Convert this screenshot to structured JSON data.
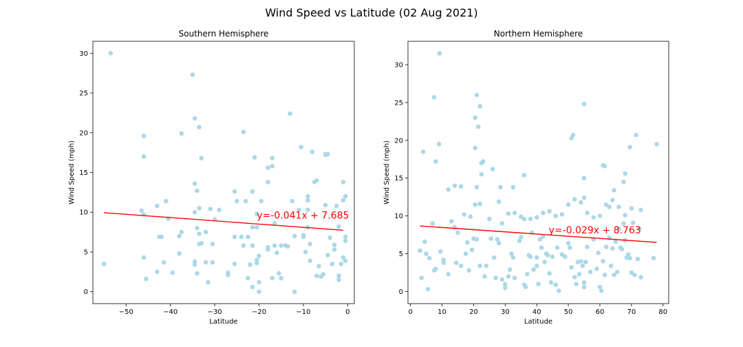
{
  "figure": {
    "title": "Wind Speed vs Latitude (02 Aug 2021)"
  },
  "colors": {
    "point": "#add8e6",
    "line": "#ff0000",
    "equation": "#ff0000",
    "axis": "#000000"
  },
  "chart_data": [
    {
      "type": "scatter",
      "title": "Southern Hemisphere",
      "xlabel": "Latitude",
      "ylabel": "Wind Speed (mph)",
      "xlim": [
        -57.5,
        1.5
      ],
      "ylim": [
        -1.5,
        31.5
      ],
      "xticks": [
        -50,
        -40,
        -30,
        -20,
        -10,
        0
      ],
      "xtick_labels": [
        "−50",
        "−40",
        "−30",
        "−20",
        "−10",
        "0"
      ],
      "yticks": [
        0,
        5,
        10,
        15,
        20,
        25,
        30
      ],
      "regression": {
        "slope": -0.041,
        "intercept": 7.685,
        "x_range": [
          -55,
          -1
        ]
      },
      "equation": "y=-0.041x + 7.685",
      "equation_pos": [
        -20.5,
        9.2
      ],
      "points": [
        [
          -53.5,
          30.0
        ],
        [
          -55,
          3.5
        ],
        [
          -46.5,
          10.2
        ],
        [
          -46,
          19.6
        ],
        [
          -46,
          17.0
        ],
        [
          -46,
          9.7
        ],
        [
          -46,
          4.3
        ],
        [
          -45.5,
          1.6
        ],
        [
          -43,
          10.8
        ],
        [
          -42.5,
          6.9
        ],
        [
          -42,
          6.9
        ],
        [
          -43,
          2.5
        ],
        [
          -41.5,
          3.7
        ],
        [
          -41,
          11.4
        ],
        [
          -40.5,
          9.2
        ],
        [
          -39.5,
          2.4
        ],
        [
          -38,
          7.0
        ],
        [
          -37.5,
          7.5
        ],
        [
          -37.5,
          19.9
        ],
        [
          -38,
          4.8
        ],
        [
          -35,
          27.3
        ],
        [
          -34.5,
          21.8
        ],
        [
          -34.5,
          13.6
        ],
        [
          -34.5,
          10.0
        ],
        [
          -34,
          12.7
        ],
        [
          -33.5,
          10.5
        ],
        [
          -33.5,
          20.7
        ],
        [
          -33,
          16.8
        ],
        [
          -34,
          8.0
        ],
        [
          -33.5,
          7.3
        ],
        [
          -33.5,
          6.0
        ],
        [
          -33,
          6.1
        ],
        [
          -34.5,
          3.8
        ],
        [
          -34.5,
          3.4
        ],
        [
          -34,
          2.3
        ],
        [
          -32,
          7.5
        ],
        [
          -32,
          3.7
        ],
        [
          -31.5,
          1.2
        ],
        [
          -31,
          10.4
        ],
        [
          -30.5,
          3.7
        ],
        [
          -30.5,
          6.0
        ],
        [
          -30,
          9.1
        ],
        [
          -29,
          10.3
        ],
        [
          -27,
          2.4
        ],
        [
          -27,
          2.1
        ],
        [
          -25.5,
          12.6
        ],
        [
          -25,
          11.4
        ],
        [
          -25.5,
          6.9
        ],
        [
          -25.5,
          3.5
        ],
        [
          -24,
          6.9
        ],
        [
          -23.5,
          20.1
        ],
        [
          -23,
          11.4
        ],
        [
          -23.5,
          5.8
        ],
        [
          -22.5,
          6.9
        ],
        [
          -22.5,
          1.7
        ],
        [
          -22,
          3.4
        ],
        [
          -21.5,
          12.6
        ],
        [
          -21.5,
          8.1
        ],
        [
          -21.5,
          5.8
        ],
        [
          -21.5,
          0.6
        ],
        [
          -21,
          16.9
        ],
        [
          -20.5,
          9.8
        ],
        [
          -20.5,
          8.1
        ],
        [
          -20.5,
          4.0
        ],
        [
          -20.5,
          3.6
        ],
        [
          -20,
          1.2
        ],
        [
          -20,
          4.5
        ],
        [
          -20,
          0.0
        ],
        [
          -19.5,
          11.4
        ],
        [
          -18,
          15.6
        ],
        [
          -18,
          13.8
        ],
        [
          -18,
          5.6
        ],
        [
          -18,
          5.3
        ],
        [
          -17,
          15.8
        ],
        [
          -17,
          16.8
        ],
        [
          -16.5,
          8.6
        ],
        [
          -16.5,
          5.8
        ],
        [
          -16,
          4.9
        ],
        [
          -17,
          1.7
        ],
        [
          -15.5,
          2.3
        ],
        [
          -15,
          1.7
        ],
        [
          -15,
          5.8
        ],
        [
          -14,
          5.8
        ],
        [
          -13.5,
          5.7
        ],
        [
          -13,
          22.4
        ],
        [
          -12.5,
          11.4
        ],
        [
          -12,
          7.0
        ],
        [
          -12,
          0.0
        ],
        [
          -11,
          10.3
        ],
        [
          -10.5,
          18.2
        ],
        [
          -10,
          7.1
        ],
        [
          -10,
          6.9
        ],
        [
          -9.5,
          5.0
        ],
        [
          -9,
          12.0
        ],
        [
          -9,
          11.5
        ],
        [
          -9,
          10.3
        ],
        [
          -9,
          8.1
        ],
        [
          -8.5,
          3.9
        ],
        [
          -8.5,
          6.0
        ],
        [
          -8,
          17.6
        ],
        [
          -7.5,
          13.8
        ],
        [
          -7,
          14.0
        ],
        [
          -7,
          2.0
        ],
        [
          -6.5,
          3.2
        ],
        [
          -6,
          1.9
        ],
        [
          -5.5,
          2.2
        ],
        [
          -5,
          17.3
        ],
        [
          -5,
          17.2
        ],
        [
          -4.5,
          17.3
        ],
        [
          -5,
          10.9
        ],
        [
          -4,
          6.8
        ],
        [
          -4.5,
          4.6
        ],
        [
          -3.5,
          3.5
        ],
        [
          -3,
          5.3
        ],
        [
          -3,
          5.9
        ],
        [
          -2.5,
          10.8
        ],
        [
          -2,
          8.2
        ],
        [
          -2,
          2.0
        ],
        [
          -2,
          1.5
        ],
        [
          -1.5,
          3.5
        ],
        [
          -1,
          4.3
        ],
        [
          -1,
          11.5
        ],
        [
          -1,
          13.8
        ],
        [
          -0.5,
          12.0
        ],
        [
          -0.5,
          6.9
        ],
        [
          -0.5,
          3.9
        ],
        [
          -0.5,
          6.4
        ]
      ]
    },
    {
      "type": "scatter",
      "title": "Northern Hemisphere",
      "xlabel": "Latitude",
      "ylabel": "Wind Speed (mph)",
      "xlim": [
        -0.8,
        81.8
      ],
      "ylim": [
        -1.6,
        33.1
      ],
      "xticks": [
        0,
        10,
        20,
        30,
        40,
        50,
        60,
        70,
        80
      ],
      "xtick_labels": [
        "0",
        "10",
        "20",
        "30",
        "40",
        "50",
        "60",
        "70",
        "80"
      ],
      "yticks": [
        0,
        5,
        10,
        15,
        20,
        25,
        30
      ],
      "regression": {
        "slope": -0.029,
        "intercept": 8.763,
        "x_range": [
          3,
          78
        ]
      },
      "equation": "y=-0.029x + 8.763",
      "equation_pos": [
        43.8,
        7.7
      ],
      "points": [
        [
          9.2,
          31.5
        ],
        [
          4,
          18.5
        ],
        [
          7.5,
          25.7
        ],
        [
          8,
          17.2
        ],
        [
          9,
          19.5
        ],
        [
          21,
          26.0
        ],
        [
          21.5,
          21.8
        ],
        [
          20.5,
          23.0
        ],
        [
          22,
          24.5
        ],
        [
          20.5,
          19.0
        ],
        [
          21,
          13.8
        ],
        [
          23,
          17.2
        ],
        [
          22.5,
          17.0
        ],
        [
          22.5,
          15.5
        ],
        [
          26,
          16.2
        ],
        [
          28.5,
          13.8
        ],
        [
          32.5,
          13.8
        ],
        [
          36,
          15.4
        ],
        [
          51,
          20.3
        ],
        [
          51.5,
          20.7
        ],
        [
          55,
          24.8
        ],
        [
          55,
          15.0
        ],
        [
          55,
          12.4
        ],
        [
          61,
          16.7
        ],
        [
          61.5,
          16.6
        ],
        [
          64.5,
          13.4
        ],
        [
          67.5,
          14.5
        ],
        [
          68,
          15.6
        ],
        [
          69.5,
          19.1
        ],
        [
          71.5,
          20.7
        ],
        [
          78,
          19.5
        ],
        [
          12,
          13.5
        ],
        [
          14,
          14.0
        ],
        [
          16,
          13.9
        ],
        [
          17,
          10.2
        ],
        [
          19,
          9.9
        ],
        [
          20.5,
          11.5
        ],
        [
          22,
          11.6
        ],
        [
          25,
          9.6
        ],
        [
          28,
          11.9
        ],
        [
          29,
          9.0
        ],
        [
          31,
          10.3
        ],
        [
          33,
          10.4
        ],
        [
          35,
          9.9
        ],
        [
          36,
          9.6
        ],
        [
          38,
          9.6
        ],
        [
          40,
          9.8
        ],
        [
          42,
          10.4
        ],
        [
          44,
          10.6
        ],
        [
          46,
          10.0
        ],
        [
          48,
          10.2
        ],
        [
          50,
          11.5
        ],
        [
          52,
          12.2
        ],
        [
          54,
          11.8
        ],
        [
          56,
          10.4
        ],
        [
          58,
          9.8
        ],
        [
          60,
          10.0
        ],
        [
          62,
          11.5
        ],
        [
          63,
          11.2
        ],
        [
          64,
          12.1
        ],
        [
          66,
          11.2
        ],
        [
          68,
          10.1
        ],
        [
          70,
          11.0
        ],
        [
          73,
          10.8
        ],
        [
          3,
          5.4
        ],
        [
          3.5,
          1.8
        ],
        [
          4.5,
          6.6
        ],
        [
          5,
          5.0
        ],
        [
          5.5,
          0.3
        ],
        [
          6,
          4.4
        ],
        [
          7,
          9.0
        ],
        [
          7.5,
          2.8
        ],
        [
          8,
          3.0
        ],
        [
          9.5,
          5.3
        ],
        [
          10.5,
          3.8
        ],
        [
          10.5,
          4.2
        ],
        [
          12,
          2.3
        ],
        [
          13,
          9.3
        ],
        [
          14,
          8.5
        ],
        [
          14.5,
          3.8
        ],
        [
          15,
          7.8
        ],
        [
          16,
          3.4
        ],
        [
          17.5,
          5.0
        ],
        [
          18,
          6.5
        ],
        [
          18.5,
          2.8
        ],
        [
          19.5,
          5.5
        ],
        [
          20,
          7.0
        ],
        [
          21,
          6.9
        ],
        [
          22,
          3.4
        ],
        [
          24,
          3.4
        ],
        [
          23.5,
          2.0
        ],
        [
          25.5,
          7.0
        ],
        [
          26.5,
          4.5
        ],
        [
          27,
          1.8
        ],
        [
          27.5,
          6.9
        ],
        [
          28,
          6.4
        ],
        [
          29,
          1.6
        ],
        [
          30,
          1.0
        ],
        [
          30,
          0.5
        ],
        [
          31,
          2.0
        ],
        [
          31.5,
          2.9
        ],
        [
          32,
          5.0
        ],
        [
          32.5,
          4.5
        ],
        [
          33,
          1.8
        ],
        [
          34.5,
          6.7
        ],
        [
          35,
          7.2
        ],
        [
          36,
          0.9
        ],
        [
          36.5,
          0.6
        ],
        [
          37,
          2.3
        ],
        [
          37.5,
          4.8
        ],
        [
          38,
          4.6
        ],
        [
          38.5,
          7.8
        ],
        [
          39,
          2.9
        ],
        [
          40,
          3.4
        ],
        [
          40,
          4.5
        ],
        [
          40.5,
          1.0
        ],
        [
          41,
          6.9
        ],
        [
          41.5,
          5.8
        ],
        [
          42,
          7.3
        ],
        [
          42.5,
          3.9
        ],
        [
          43,
          5.0
        ],
        [
          43.5,
          4.8
        ],
        [
          44,
          2.4
        ],
        [
          44.5,
          1.2
        ],
        [
          45,
          4.6
        ],
        [
          46,
          0.9
        ],
        [
          46.5,
          5.8
        ],
        [
          47,
          0.1
        ],
        [
          48,
          4.9
        ],
        [
          49,
          4.6
        ],
        [
          50,
          6.4
        ],
        [
          50.5,
          5.8
        ],
        [
          51,
          3.2
        ],
        [
          52,
          1.9
        ],
        [
          52.5,
          1.0
        ],
        [
          53,
          3.9
        ],
        [
          53.5,
          2.3
        ],
        [
          54,
          4.0
        ],
        [
          54.5,
          3.4
        ],
        [
          55,
          1.2
        ],
        [
          55,
          0.6
        ],
        [
          55.5,
          3.9
        ],
        [
          56,
          5.9
        ],
        [
          57,
          2.6
        ],
        [
          58,
          6.9
        ],
        [
          59,
          3.0
        ],
        [
          59.5,
          5.1
        ],
        [
          60,
          0.6
        ],
        [
          60.5,
          0.1
        ],
        [
          61,
          4.0
        ],
        [
          61.5,
          2.2
        ],
        [
          62,
          5.9
        ],
        [
          63,
          7.1
        ],
        [
          63.5,
          3.4
        ],
        [
          64,
          5.7
        ],
        [
          64.5,
          2.2
        ],
        [
          65,
          6.6
        ],
        [
          65.5,
          2.6
        ],
        [
          66,
          8.3
        ],
        [
          66.5,
          5.8
        ],
        [
          67,
          5.6
        ],
        [
          67.5,
          9.0
        ],
        [
          68,
          6.8
        ],
        [
          68.5,
          4.5
        ],
        [
          69,
          4.9
        ],
        [
          69.5,
          4.4
        ],
        [
          70,
          2.5
        ],
        [
          70.5,
          9.1
        ],
        [
          71,
          2.2
        ],
        [
          72,
          4.3
        ],
        [
          72.5,
          8.3
        ],
        [
          73,
          1.9
        ],
        [
          77,
          4.4
        ]
      ]
    }
  ]
}
